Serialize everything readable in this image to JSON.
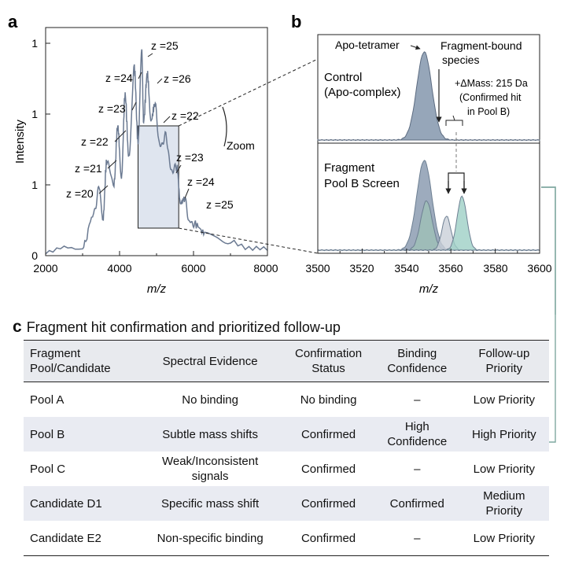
{
  "panel_labels": {
    "a": "a",
    "b": "b",
    "c": "c"
  },
  "chart_data": [
    {
      "panel": "a",
      "type": "line",
      "xlabel": "m/z",
      "ylabel": "Intensity",
      "xlim": [
        2000,
        8000
      ],
      "x_ticks": [
        "2000",
        "4000",
        "6000",
        "8000"
      ],
      "y_ticks": [
        "0",
        "1",
        "1",
        "1"
      ],
      "series": [
        {
          "name": "Mass spectrum",
          "x": [
            2000,
            3000,
            3300,
            3450,
            3550,
            3650,
            3850,
            3950,
            4050,
            4150,
            4250,
            4400,
            4500,
            4600,
            4650,
            4750,
            4850,
            4950,
            5100,
            5250,
            5400,
            5550,
            5650,
            5750,
            5900,
            6050,
            6300,
            7000,
            8000
          ],
          "y": [
            0.05,
            0.08,
            0.4,
            0.65,
            0.35,
            0.9,
            0.7,
            1.25,
            0.75,
            1.55,
            0.95,
            1.8,
            1.1,
            1.98,
            1.3,
            1.75,
            1.3,
            1.45,
            1.05,
            1.15,
            0.82,
            0.85,
            0.5,
            0.55,
            0.32,
            0.3,
            0.22,
            0.12,
            0.05
          ]
        }
      ],
      "annotations": [
        "z =20",
        "z =21",
        "z =22",
        "z =23",
        "z =24",
        "z =25",
        "z =26",
        "z =22",
        "z =23",
        "z =24",
        "z =25",
        "Zoom"
      ],
      "zoom_box_x": [
        4500,
        5600
      ]
    },
    {
      "panel": "b",
      "type": "area",
      "xlabel": "m/z",
      "xlim": [
        3500,
        3600
      ],
      "x_ticks": [
        "3500",
        "3520",
        "3540",
        "3560",
        "3580",
        "3600"
      ],
      "subpanels": [
        {
          "name": "Control (Apo-complex)",
          "line1": "Control",
          "line2": "(Apo-complex)",
          "series": [
            {
              "name": "Apo-tetramer",
              "center": 3548,
              "height": 1.0
            }
          ]
        },
        {
          "name": "Fragment Pool B Screen",
          "line1": "Fragment",
          "line2": "Pool B Screen",
          "series": [
            {
              "name": "Apo-tetramer",
              "center": 3548,
              "height": 1.0
            },
            {
              "name": "Shoulder",
              "center": 3549,
              "height": 0.55
            },
            {
              "name": "Fragment-bound 1",
              "center": 3558,
              "height": 0.38
            },
            {
              "name": "Fragment-bound 2",
              "center": 3565,
              "height": 0.6
            }
          ]
        }
      ],
      "annotations": {
        "apo": "Apo-tetramer",
        "fragment_line1": "Fragment-bound",
        "fragment_line2": "species",
        "mass_line1": "+ΔMass: 215 Da",
        "mass_line2": "(Confirmed hit",
        "mass_line3": "in Pool B)"
      }
    }
  ],
  "section_c": {
    "title": "Fragment hit confirmation and prioritized follow-up",
    "headers": [
      {
        "l1": "Fragment",
        "l2": "Pool/Candidate"
      },
      {
        "l1": "Spectral Evidence",
        "l2": ""
      },
      {
        "l1": "Confirmation",
        "l2": "Status"
      },
      {
        "l1": "Binding",
        "l2": "Confidence"
      },
      {
        "l1": "Follow-up",
        "l2": "Priority"
      }
    ],
    "rows": [
      {
        "c0": "Pool A",
        "c1a": "No binding",
        "c1b": "",
        "c2": "No binding",
        "c3a": "–",
        "c3b": "",
        "c4a": "Low Priority",
        "c4b": ""
      },
      {
        "c0": "Pool B",
        "c1a": "Subtle mass shifts",
        "c1b": "",
        "c2": "Confirmed",
        "c3a": "High",
        "c3b": "Confidence",
        "c4a": "High Priority",
        "c4b": ""
      },
      {
        "c0": "Pool C",
        "c1a": "Weak/Inconsistent",
        "c1b": "signals",
        "c2": "Confirmed",
        "c3a": "–",
        "c3b": "",
        "c4a": "Low Priority",
        "c4b": ""
      },
      {
        "c0": "Candidate D1",
        "c1a": "Specific mass shift",
        "c1b": "",
        "c2": "Confirmed",
        "c3a": "Confirmed",
        "c3b": "",
        "c4a": "Medium",
        "c4b": "Priority"
      },
      {
        "c0": "Candidate E2",
        "c1a": "Non-specific binding",
        "c1b": "",
        "c2": "Confirmed",
        "c3a": "–",
        "c3b": "",
        "c4a": "Low Priority",
        "c4b": ""
      }
    ]
  },
  "colors": {
    "spectrum_line": "#6b7a92",
    "apo_fill": "#8496ad",
    "shoulder_fill": "#9fc1b7",
    "bound1_fill": "#c9cfd8",
    "bound2_fill": "#9ed0c5",
    "zoom_fill": "#dfe5ef",
    "connector": "#7fa8a0"
  }
}
